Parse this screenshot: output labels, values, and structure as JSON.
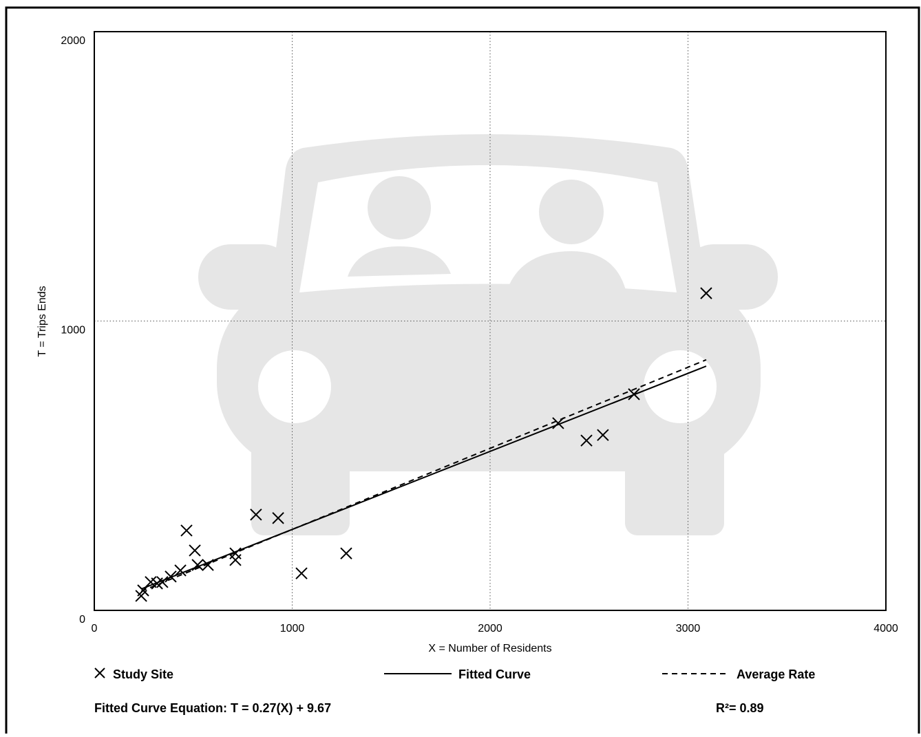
{
  "chart_data": {
    "type": "scatter",
    "x_label": "X = Number of Residents",
    "y_label": "T = Trips Ends",
    "xlim": [
      0,
      4000
    ],
    "ylim": [
      0,
      2000
    ],
    "xticks": [
      0,
      1000,
      2000,
      3000,
      4000
    ],
    "yticks": [
      0,
      1000,
      2000
    ],
    "grid": true,
    "series": [
      {
        "name": "Study Site",
        "color": "#000000",
        "marker": "x",
        "x": [
          237,
          247,
          285,
          317,
          344,
          386,
          435,
          466,
          508,
          522,
          574,
          713,
          713,
          817,
          929,
          1047,
          1273,
          2344,
          2487,
          2570,
          2727,
          3092
        ],
        "values": [
          50,
          69,
          98,
          93,
          98,
          117,
          138,
          276,
          207,
          157,
          157,
          197,
          174,
          331,
          319,
          128,
          197,
          647,
          587,
          606,
          747,
          1096
        ]
      },
      {
        "name": "Fitted Curve",
        "color": "#000000",
        "line_style": "solid",
        "x": [
          237,
          3092
        ],
        "values": [
          74,
          844
        ]
      },
      {
        "name": "Average Rate",
        "color": "#000000",
        "line_style": "dashed",
        "x": [
          237,
          3092
        ],
        "values": [
          66,
          866
        ]
      }
    ],
    "annotations": [
      "Fitted Curve Equation: T = 0.27(X) + 9.67",
      "R²= 0.89"
    ]
  }
}
